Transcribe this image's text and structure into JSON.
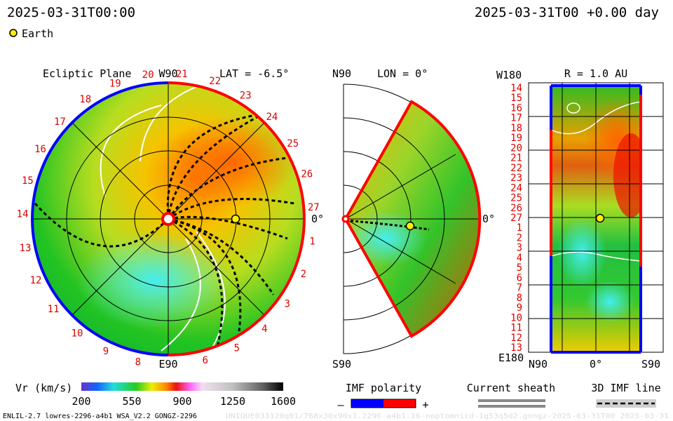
{
  "header": {
    "left_date": "2025-03-31T00:00",
    "right_date": "2025-03-31T00 +0.00 day",
    "earth_label": "Earth"
  },
  "colors": {
    "background": "#ffffff",
    "red_boundary": "#ff0000",
    "blue_boundary": "#0000ff",
    "earth_marker": "#ffee00",
    "tick_label": "#dd0000"
  },
  "chart_data": [
    {
      "type": "heatmap",
      "panel": "ecliptic-plane",
      "title": "Ecliptic Plane",
      "subtitle": "LAT = -6.5°",
      "top_label": "W90",
      "bottom_label": "E90",
      "right_label": "0°",
      "carrington_ticks": [
        "20",
        "21",
        "22",
        "23",
        "24",
        "25",
        "26",
        "27",
        "1",
        "2",
        "3",
        "4",
        "5",
        "6",
        "8",
        "9",
        "10",
        "11",
        "12",
        "13",
        "14",
        "15",
        "16",
        "17",
        "18",
        "19"
      ],
      "earth": {
        "angle_deg": 0,
        "r_au": 1.0
      }
    },
    {
      "type": "heatmap",
      "panel": "meridional-plane",
      "subtitle": "LON = 0°",
      "top_label": "N90",
      "bottom_label": "S90",
      "right_label": "0°",
      "latitude_extent_deg": [
        -60,
        60
      ],
      "earth": {
        "lat_deg": 0,
        "r_au": 1.0
      }
    },
    {
      "type": "heatmap",
      "panel": "r-surface-map",
      "subtitle": "R = 1.0 AU",
      "y_top_label": "W180",
      "y_bottom_label": "E180",
      "x_labels": [
        "N90",
        "0°",
        "S90"
      ],
      "y_ticks": [
        "14",
        "15",
        "16",
        "17",
        "18",
        "19",
        "20",
        "21",
        "22",
        "23",
        "24",
        "25",
        "26",
        "27",
        "1",
        "2",
        "3",
        "4",
        "5",
        "6",
        "7",
        "8",
        "9",
        "10",
        "11",
        "12",
        "13"
      ],
      "earth": {
        "lon_deg": 0,
        "lat_deg": 0
      }
    }
  ],
  "legend": {
    "colorbar": {
      "label": "Vr (km/s)",
      "ticks": [
        "200",
        "550",
        "900",
        "1250",
        "1600"
      ],
      "range": [
        200,
        1600
      ]
    },
    "imf_polarity": {
      "title": "IMF polarity",
      "minus": "–",
      "plus": "+"
    },
    "current_sheath": {
      "title": "Current sheath"
    },
    "imf_line": {
      "title": "3D IMF line"
    }
  },
  "footer": {
    "left": "ENLIL-2.7 lowres-2296-a4b1 WSA_V2.2 GONGZ-2296",
    "right": "UNIQUE033120q01/768x30x90x1.2296-a4b1.16-noptomnicd-1g53q5d2.gongz-2025-03-31T00  2025-03-31"
  }
}
